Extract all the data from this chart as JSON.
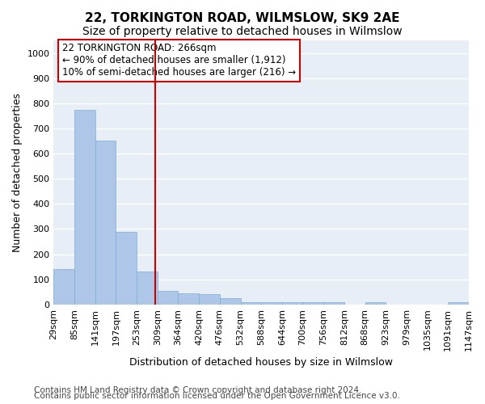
{
  "title": "22, TORKINGTON ROAD, WILMSLOW, SK9 2AE",
  "subtitle": "Size of property relative to detached houses in Wilmslow",
  "xlabel": "Distribution of detached houses by size in Wilmslow",
  "ylabel": "Number of detached properties",
  "bins": [
    "29sqm",
    "85sqm",
    "141sqm",
    "197sqm",
    "253sqm",
    "309sqm",
    "364sqm",
    "420sqm",
    "476sqm",
    "532sqm",
    "588sqm",
    "644sqm",
    "700sqm",
    "756sqm",
    "812sqm",
    "868sqm",
    "923sqm",
    "979sqm",
    "1035sqm",
    "1091sqm",
    "1147sqm"
  ],
  "values": [
    140,
    775,
    650,
    290,
    130,
    55,
    45,
    40,
    25,
    10,
    10,
    10,
    10,
    10,
    0,
    10,
    0,
    0,
    0,
    10
  ],
  "bar_color": "#aec6e8",
  "bar_edge_color": "#7bafd4",
  "vline_x_index": 4.4,
  "vline_color": "#cc0000",
  "annotation_text": "22 TORKINGTON ROAD: 266sqm\n← 90% of detached houses are smaller (1,912)\n10% of semi-detached houses are larger (216) →",
  "annotation_box_color": "#ffffff",
  "annotation_box_edgecolor": "#cc0000",
  "ylim": [
    0,
    1050
  ],
  "yticks": [
    0,
    100,
    200,
    300,
    400,
    500,
    600,
    700,
    800,
    900,
    1000
  ],
  "bg_color": "#e8eef5",
  "grid_color": "#ffffff",
  "footer1": "Contains HM Land Registry data © Crown copyright and database right 2024.",
  "footer2": "Contains public sector information licensed under the Open Government Licence v3.0.",
  "title_fontsize": 11,
  "subtitle_fontsize": 10,
  "axis_label_fontsize": 9,
  "tick_fontsize": 8,
  "annotation_fontsize": 8.5,
  "footer_fontsize": 7.5
}
